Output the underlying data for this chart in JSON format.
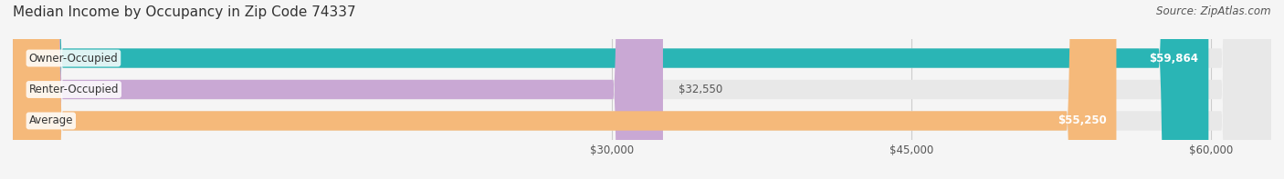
{
  "title": "Median Income by Occupancy in Zip Code 74337",
  "source": "Source: ZipAtlas.com",
  "categories": [
    "Owner-Occupied",
    "Renter-Occupied",
    "Average"
  ],
  "values": [
    59864,
    32550,
    55250
  ],
  "bar_colors": [
    "#2ab5b5",
    "#c9a8d4",
    "#f5b97a"
  ],
  "value_labels": [
    "$59,864",
    "$32,550",
    "$55,250"
  ],
  "x_ticks": [
    30000,
    45000,
    60000
  ],
  "x_tick_labels": [
    "$30,000",
    "$45,000",
    "$60,000"
  ],
  "xlim": [
    0,
    63000
  ],
  "background_color": "#f5f5f5",
  "bar_background_color": "#e8e8e8",
  "title_fontsize": 11,
  "source_fontsize": 8.5,
  "label_fontsize": 8.5,
  "tick_fontsize": 8.5
}
